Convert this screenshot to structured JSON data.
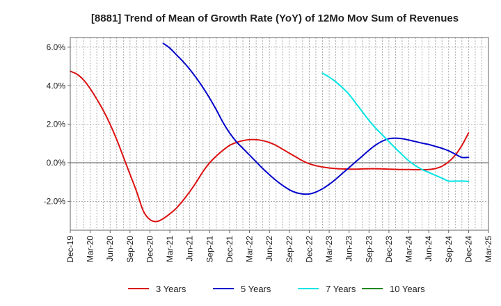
{
  "chart_data": {
    "type": "line",
    "title": "[8881]  Trend of Mean of Growth Rate (YoY) of 12Mo Mov Sum of Revenues",
    "xlabel": "",
    "ylabel": "",
    "y_unit": "%",
    "ylim": [
      -3.5,
      6.5
    ],
    "yticks": [
      6.0,
      4.0,
      2.0,
      0.0,
      -2.0
    ],
    "ytick_labels": [
      "6.0%",
      "4.0%",
      "2.0%",
      "0.0%",
      "-2.0%"
    ],
    "x_start": "Dec-19",
    "x_range_months": [
      0,
      63
    ],
    "xticks": [
      "Dec-19",
      "Mar-20",
      "Jun-20",
      "Sep-20",
      "Dec-20",
      "Mar-21",
      "Jun-21",
      "Sep-21",
      "Dec-21",
      "Mar-22",
      "Jun-22",
      "Sep-22",
      "Dec-22",
      "Mar-23",
      "Jun-23",
      "Sep-23",
      "Dec-23",
      "Mar-24",
      "Jun-24",
      "Sep-24",
      "Dec-24",
      "Mar-25"
    ],
    "grid": true,
    "legend_position": "bottom",
    "series": [
      {
        "name": "3 Years",
        "color": "#dd1111",
        "months": [
          0,
          1,
          2,
          3,
          4,
          5,
          6,
          7,
          8,
          9,
          10,
          11,
          12,
          13,
          14,
          15,
          16,
          17,
          18,
          19,
          20,
          21,
          22,
          23,
          24,
          25,
          26,
          27,
          28,
          29,
          30,
          31,
          32,
          33,
          34,
          35,
          36,
          37,
          38,
          39,
          40,
          41,
          42,
          43,
          44,
          45,
          46,
          47,
          48,
          49,
          50,
          51,
          52,
          53,
          54,
          55,
          56,
          57,
          58,
          59,
          60
        ],
        "values": [
          4.75,
          4.6,
          4.3,
          3.85,
          3.3,
          2.7,
          2.0,
          1.2,
          0.3,
          -0.6,
          -1.5,
          -2.5,
          -2.95,
          -3.05,
          -2.9,
          -2.65,
          -2.35,
          -1.95,
          -1.5,
          -1.0,
          -0.45,
          0.0,
          0.35,
          0.65,
          0.9,
          1.05,
          1.15,
          1.2,
          1.2,
          1.15,
          1.05,
          0.9,
          0.7,
          0.5,
          0.3,
          0.1,
          -0.05,
          -0.15,
          -0.22,
          -0.27,
          -0.3,
          -0.32,
          -0.33,
          -0.33,
          -0.32,
          -0.31,
          -0.31,
          -0.32,
          -0.33,
          -0.34,
          -0.35,
          -0.35,
          -0.36,
          -0.36,
          -0.35,
          -0.3,
          -0.18,
          0.05,
          0.4,
          0.9,
          1.55
        ]
      },
      {
        "name": "5 Years",
        "color": "#0000cc",
        "months": [
          14,
          15,
          16,
          17,
          18,
          19,
          20,
          21,
          22,
          23,
          24,
          25,
          26,
          27,
          28,
          29,
          30,
          31,
          32,
          33,
          34,
          35,
          36,
          37,
          38,
          39,
          40,
          41,
          42,
          43,
          44,
          45,
          46,
          47,
          48,
          49,
          50,
          51,
          52,
          53,
          54,
          55,
          56,
          57,
          58,
          59,
          60
        ],
        "values": [
          6.2,
          5.95,
          5.6,
          5.25,
          4.85,
          4.4,
          3.9,
          3.35,
          2.75,
          2.1,
          1.55,
          1.1,
          0.75,
          0.4,
          0.05,
          -0.3,
          -0.62,
          -0.92,
          -1.18,
          -1.4,
          -1.55,
          -1.62,
          -1.62,
          -1.52,
          -1.35,
          -1.12,
          -0.85,
          -0.55,
          -0.25,
          0.05,
          0.35,
          0.65,
          0.92,
          1.12,
          1.25,
          1.28,
          1.25,
          1.18,
          1.1,
          1.02,
          0.95,
          0.85,
          0.75,
          0.62,
          0.45,
          0.28,
          0.28
        ]
      },
      {
        "name": "7 Years",
        "color": "#00e5e5",
        "months": [
          38,
          39,
          40,
          41,
          42,
          43,
          44,
          45,
          46,
          47,
          48,
          49,
          50,
          51,
          52,
          53,
          54,
          55,
          56,
          57,
          58,
          59,
          60
        ],
        "values": [
          4.65,
          4.45,
          4.2,
          3.9,
          3.55,
          3.1,
          2.65,
          2.2,
          1.8,
          1.45,
          1.1,
          0.75,
          0.42,
          0.1,
          -0.15,
          -0.35,
          -0.5,
          -0.65,
          -0.8,
          -0.95,
          -0.95,
          -0.95,
          -0.97
        ]
      },
      {
        "name": "10 Years",
        "color": "#228822",
        "months": [],
        "values": []
      }
    ]
  }
}
